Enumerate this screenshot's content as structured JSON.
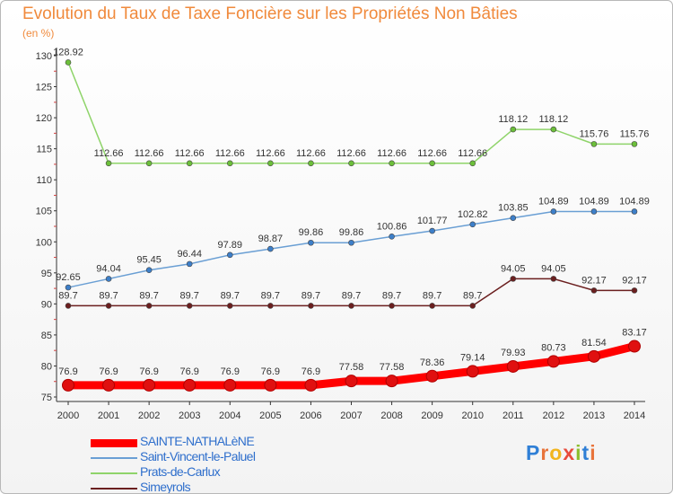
{
  "title": "Evolution du Taux de Taxe Foncière sur les Propriétés Non Bâties",
  "unit": "(en %)",
  "logo": {
    "text": "Proxiti",
    "letter_colors": [
      "#2f7fd6",
      "#e8743b",
      "#f2b51e",
      "#e84b3c",
      "#8cbe2c",
      "#2f7fd6",
      "#e8743b"
    ]
  },
  "chart_data": {
    "type": "line",
    "x": [
      "2000",
      "2001",
      "2002",
      "2003",
      "2004",
      "2005",
      "2006",
      "2007",
      "2008",
      "2009",
      "2010",
      "2011",
      "2012",
      "2013",
      "2014"
    ],
    "ylim": [
      75,
      130
    ],
    "yticks": [
      75,
      80,
      85,
      90,
      95,
      100,
      105,
      110,
      115,
      120,
      125,
      130
    ],
    "grid": false,
    "legend_position": "bottom-left",
    "series": [
      {
        "name": "SAINTE-NATHALèNE",
        "color": "#ff0000",
        "marker_color": "#e01010",
        "highlight": true,
        "values": [
          76.9,
          76.9,
          76.9,
          76.9,
          76.9,
          76.9,
          76.9,
          77.58,
          77.58,
          78.36,
          79.14,
          79.93,
          80.73,
          81.54,
          83.17
        ],
        "labels": [
          "76.9",
          "76.9",
          "76.9",
          "76.9",
          "76.9",
          "76.9",
          "76.9",
          "77.58",
          "77.58",
          "78.36",
          "79.14",
          "79.93",
          "80.73",
          "81.54",
          "83.17"
        ]
      },
      {
        "name": "Saint-Vincent-le-Paluel",
        "color": "#6a9fd4",
        "marker_color": "#3d7fc9",
        "highlight": false,
        "values": [
          92.65,
          94.04,
          95.45,
          96.44,
          97.89,
          98.87,
          99.86,
          99.86,
          100.86,
          101.77,
          102.82,
          103.85,
          104.89,
          104.89,
          104.89
        ],
        "labels": [
          "92.65",
          "94.04",
          "95.45",
          "96.44",
          "97.89",
          "98.87",
          "99.86",
          "99.86",
          "100.86",
          "101.77",
          "102.82",
          "103.85",
          "104.89",
          "104.89",
          "104.89"
        ]
      },
      {
        "name": "Prats-de-Carlux",
        "color": "#8fd46a",
        "marker_color": "#6cbf3a",
        "highlight": false,
        "values": [
          128.92,
          112.66,
          112.66,
          112.66,
          112.66,
          112.66,
          112.66,
          112.66,
          112.66,
          112.66,
          112.66,
          118.12,
          118.12,
          115.76,
          115.76
        ],
        "labels": [
          "128.92",
          "112.66",
          "112.66",
          "112.66",
          "112.66",
          "112.66",
          "112.66",
          "112.66",
          "112.66",
          "112.66",
          "112.66",
          "118.12",
          "118.12",
          "115.76",
          "115.76"
        ]
      },
      {
        "name": "Simeyrols",
        "color": "#6b1f1f",
        "marker_color": "#6b1f1f",
        "highlight": false,
        "values": [
          89.7,
          89.7,
          89.7,
          89.7,
          89.7,
          89.7,
          89.7,
          89.7,
          89.7,
          89.7,
          89.7,
          94.05,
          94.05,
          92.17,
          92.17
        ],
        "labels": [
          "89.7",
          "89.7",
          "89.7",
          "89.7",
          "89.7",
          "89.7",
          "89.7",
          "89.7",
          "89.7",
          "89.7",
          "89.7",
          "94.05",
          "94.05",
          "92.17",
          "92.17"
        ]
      }
    ]
  }
}
